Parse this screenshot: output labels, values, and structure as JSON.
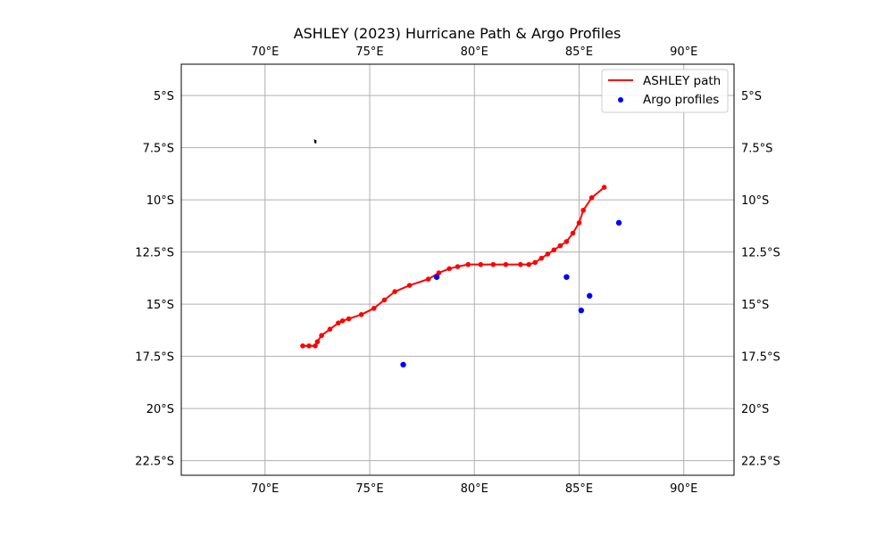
{
  "chart_data": {
    "type": "map",
    "title": "ASHLEY (2023) Hurricane Path & Argo Profiles",
    "xlim": [
      66,
      92.4
    ],
    "ylim": [
      -23.2,
      -3.5
    ],
    "x_ticks": [
      {
        "value": 70,
        "label": "70°E"
      },
      {
        "value": 75,
        "label": "75°E"
      },
      {
        "value": 80,
        "label": "80°E"
      },
      {
        "value": 85,
        "label": "85°E"
      },
      {
        "value": 90,
        "label": "90°E"
      }
    ],
    "y_ticks": [
      {
        "value": -5,
        "label": "5°S"
      },
      {
        "value": -7.5,
        "label": "7.5°S"
      },
      {
        "value": -10,
        "label": "10°S"
      },
      {
        "value": -12.5,
        "label": "12.5°S"
      },
      {
        "value": -15,
        "label": "15°S"
      },
      {
        "value": -17.5,
        "label": "17.5°S"
      },
      {
        "value": -20,
        "label": "20°S"
      },
      {
        "value": -22.5,
        "label": "22.5°S"
      }
    ],
    "grid": true,
    "legend_position": "top-right",
    "series": [
      {
        "name": "ASHLEY path",
        "kind": "line-with-markers",
        "color": "#ff0000",
        "lon": [
          71.8,
          72.1,
          72.4,
          72.5,
          72.7,
          73.1,
          73.5,
          73.7,
          74.0,
          74.6,
          75.2,
          75.7,
          76.2,
          76.9,
          77.8,
          78.3,
          78.8,
          79.2,
          79.7,
          80.3,
          80.9,
          81.5,
          82.2,
          82.6,
          82.9,
          83.2,
          83.5,
          83.8,
          84.1,
          84.4,
          84.7,
          85.0,
          85.2,
          85.6,
          86.2
        ],
        "lat": [
          -17.0,
          -17.0,
          -17.0,
          -16.8,
          -16.5,
          -16.2,
          -15.9,
          -15.8,
          -15.7,
          -15.5,
          -15.2,
          -14.8,
          -14.4,
          -14.1,
          -13.8,
          -13.5,
          -13.3,
          -13.2,
          -13.1,
          -13.1,
          -13.1,
          -13.1,
          -13.1,
          -13.1,
          -13.0,
          -12.8,
          -12.6,
          -12.4,
          -12.2,
          -12.0,
          -11.6,
          -11.1,
          -10.5,
          -9.9,
          -9.4
        ]
      },
      {
        "name": "Argo profiles",
        "kind": "scatter",
        "color": "#0000ff",
        "lon": [
          78.2,
          84.4,
          85.5,
          86.9,
          85.1,
          76.6
        ],
        "lat": [
          -13.7,
          -13.7,
          -14.6,
          -11.1,
          -15.3,
          -17.9
        ]
      }
    ],
    "land_features": [
      {
        "name": "small-island",
        "lon": 72.4,
        "lat": -7.2,
        "color": "#000000"
      }
    ]
  }
}
